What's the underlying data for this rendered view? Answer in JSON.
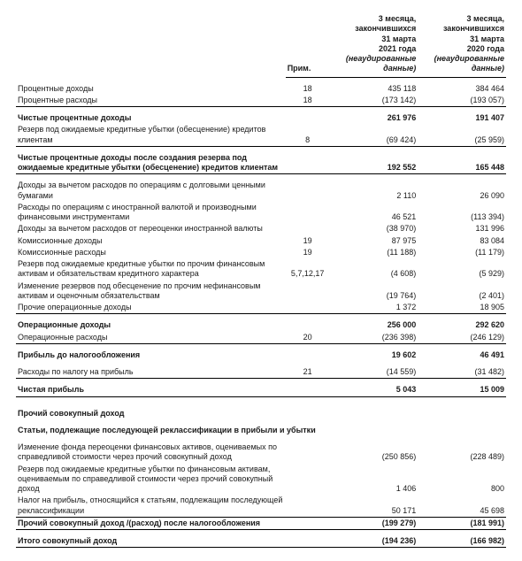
{
  "columns": {
    "note": "Прим.",
    "period1_line1": "3 месяца,",
    "period1_line2": "закончившихся",
    "period1_line3": "31 марта",
    "period1_line4": "2021 года",
    "period1_line5": "(неаудированные",
    "period1_line6": "данные)",
    "period2_line1": "3 месяца,",
    "period2_line2": "закончившихся",
    "period2_line3": "31 марта",
    "period2_line4": "2020 года",
    "period2_line5": "(неаудированные",
    "period2_line6": "данные)"
  },
  "rows": {
    "r01": {
      "label": "Процентные доходы",
      "note": "18",
      "v1": "435 118",
      "v2": "384 464"
    },
    "r02": {
      "label": "Процентные расходы",
      "note": "18",
      "v1": "(173 142)",
      "v2": "(193 057)"
    },
    "r03": {
      "label": "Чистые процентные доходы",
      "note": "",
      "v1": "261 976",
      "v2": "191 407"
    },
    "r04": {
      "label": "Резерв под ожидаемые кредитные убытки (обесценение) кредитов клиентам",
      "note": "8",
      "v1": "(69 424)",
      "v2": "(25 959)"
    },
    "r05": {
      "label": "Чистые процентные доходы после создания резерва под ожидаемые кредитные убытки (обесценение) кредитов клиентам",
      "note": "",
      "v1": "192 552",
      "v2": "165 448"
    },
    "r06": {
      "label": "Доходы за вычетом расходов по операциям с долговыми ценными бумагами",
      "note": "",
      "v1": "2 110",
      "v2": "26 090"
    },
    "r07": {
      "label": "Расходы по операциям с иностранной валютой и производными финансовыми инструментами",
      "note": "",
      "v1": "46 521",
      "v2": "(113 394)"
    },
    "r08": {
      "label": "Доходы за вычетом расходов от переоценки иностранной валюты",
      "note": "",
      "v1": "(38 970)",
      "v2": "131 996"
    },
    "r09": {
      "label": "Комиссионные доходы",
      "note": "19",
      "v1": "87 975",
      "v2": "83 084"
    },
    "r10": {
      "label": "Комиссионные расходы",
      "note": "19",
      "v1": "(11 188)",
      "v2": "(11 179)"
    },
    "r11": {
      "label": "Резерв под ожидаемые кредитные убытки по прочим финансовым активам и обязательствам кредитного характера",
      "note": "5,7,12,17",
      "v1": "(4 608)",
      "v2": "(5 929)"
    },
    "r12": {
      "label": "Изменение резервов под обесценение по прочим нефинансовым активам и оценочным обязательствам",
      "note": "",
      "v1": "(19 764)",
      "v2": "(2 401)"
    },
    "r13": {
      "label": "Прочие операционные доходы",
      "note": "",
      "v1": "1 372",
      "v2": "18 905"
    },
    "r14": {
      "label": "Операционные доходы",
      "note": "",
      "v1": "256 000",
      "v2": "292 620"
    },
    "r15": {
      "label": "Операционные расходы",
      "note": "20",
      "v1": "(236 398)",
      "v2": "(246 129)"
    },
    "r16": {
      "label": "Прибыль до налогообложения",
      "note": "",
      "v1": "19 602",
      "v2": "46 491"
    },
    "r17": {
      "label": "Расходы по налогу на прибыль",
      "note": "21",
      "v1": "(14 559)",
      "v2": "(31 482)"
    },
    "r18": {
      "label": "Чистая прибыль",
      "note": "",
      "v1": "5 043",
      "v2": "15 009"
    },
    "sec1": {
      "label": "Прочий совокупный доход"
    },
    "sec2": {
      "label": "Статьи, подлежащие последующей реклассификации в прибыли и убытки"
    },
    "r19": {
      "label": "Изменение фонда переоценки финансовых активов, оцениваемых по справедливой стоимости через прочий совокупный доход",
      "note": "",
      "v1": "(250 856)",
      "v2": "(228 489)"
    },
    "r20": {
      "label": "Резерв под ожидаемые кредитные убытки по финансовым активам, оцениваемым по справедливой стоимости через прочий совокупный доход",
      "note": "",
      "v1": "1 406",
      "v2": "800"
    },
    "r21": {
      "label": "Налог на прибыль, относящийся к статьям, подлежащим последующей реклассификации",
      "note": "",
      "v1": "50 171",
      "v2": "45 698"
    },
    "r22": {
      "label": "Прочий совокупный доход /(расход) после налогообложения",
      "note": "",
      "v1": "(199 279)",
      "v2": "(181 991)"
    },
    "r23": {
      "label": "Итого совокупный доход",
      "note": "",
      "v1": "(194 236)",
      "v2": "(166 982)"
    }
  }
}
